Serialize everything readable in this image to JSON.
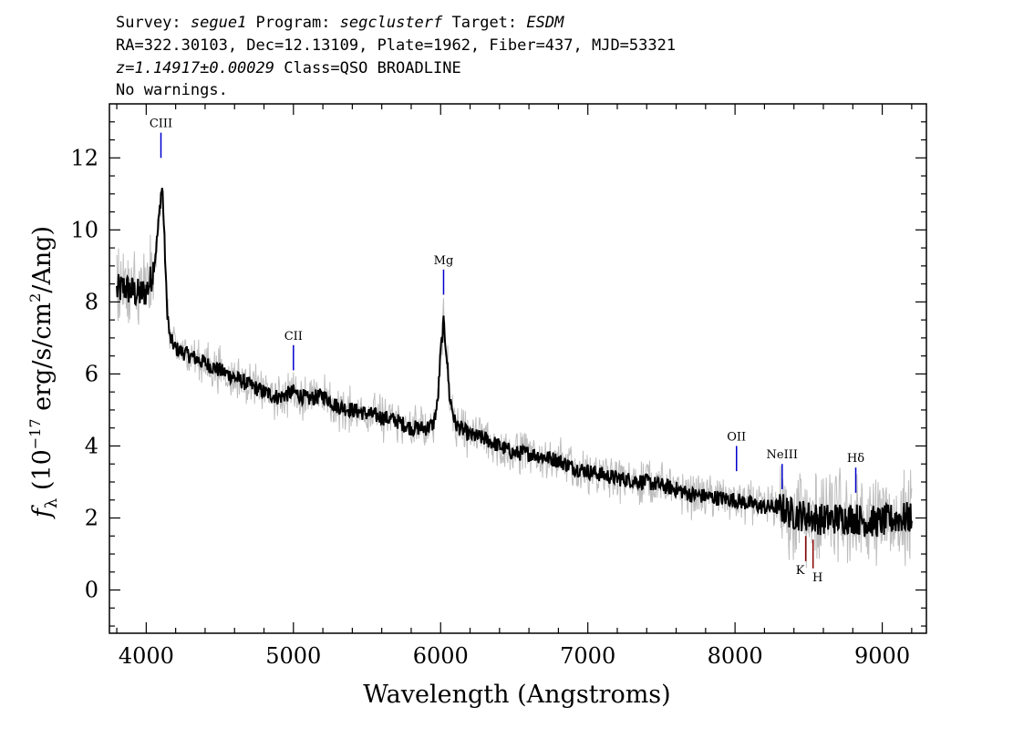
{
  "header": {
    "line1": [
      {
        "t": "Survey: ",
        "i": false
      },
      {
        "t": "segue1",
        "i": true
      },
      {
        "t": " Program: ",
        "i": false
      },
      {
        "t": "segclusterf",
        "i": true
      },
      {
        "t": " Target: ",
        "i": false
      },
      {
        "t": "ESDM",
        "i": true
      }
    ],
    "line2": "RA=322.30103, Dec=12.13109, Plate=1962, Fiber=437, MJD=53321",
    "line3": [
      {
        "t": "z=1.14917±0.00029",
        "i": true
      },
      {
        "t": " Class=QSO BROADLINE",
        "i": false
      }
    ],
    "line4": "No warnings."
  },
  "chart_data": {
    "type": "line",
    "xlabel": "Wavelength (Angstroms)",
    "ylabel_parts": {
      "f": "f",
      "sub": "λ",
      "pre": " (10",
      "exp": "−17",
      "mid": " erg/s/cm",
      "exp2": "2",
      "post": "/Ang)"
    },
    "xlim": [
      3750,
      9300
    ],
    "ylim": [
      -1.2,
      13.5
    ],
    "xticks": [
      4000,
      5000,
      6000,
      7000,
      8000,
      9000
    ],
    "yticks": [
      0,
      2,
      4,
      6,
      8,
      10,
      12
    ],
    "series": [
      {
        "color": "#000000",
        "points": [
          [
            3800,
            8.3
          ],
          [
            3850,
            8.4
          ],
          [
            3900,
            8.3
          ],
          [
            3950,
            8.2
          ],
          [
            4000,
            8.3
          ],
          [
            4030,
            8.6
          ],
          [
            4060,
            9.2
          ],
          [
            4080,
            10.0
          ],
          [
            4100,
            11.0
          ],
          [
            4110,
            11.2
          ],
          [
            4125,
            9.6
          ],
          [
            4140,
            7.9
          ],
          [
            4160,
            7.0
          ],
          [
            4200,
            6.7
          ],
          [
            4300,
            6.5
          ],
          [
            4400,
            6.3
          ],
          [
            4500,
            6.1
          ],
          [
            4600,
            5.9
          ],
          [
            4700,
            5.7
          ],
          [
            4800,
            5.5
          ],
          [
            4900,
            5.35
          ],
          [
            5000,
            5.5
          ],
          [
            5100,
            5.3
          ],
          [
            5200,
            5.4
          ],
          [
            5300,
            5.1
          ],
          [
            5400,
            5.0
          ],
          [
            5500,
            4.9
          ],
          [
            5600,
            4.8
          ],
          [
            5700,
            4.7
          ],
          [
            5800,
            4.5
          ],
          [
            5900,
            4.5
          ],
          [
            5950,
            4.6
          ],
          [
            5980,
            5.2
          ],
          [
            6000,
            6.6
          ],
          [
            6020,
            7.4
          ],
          [
            6040,
            6.6
          ],
          [
            6060,
            5.4
          ],
          [
            6100,
            4.6
          ],
          [
            6200,
            4.3
          ],
          [
            6300,
            4.2
          ],
          [
            6400,
            4.0
          ],
          [
            6500,
            3.8
          ],
          [
            6600,
            3.8
          ],
          [
            6700,
            3.7
          ],
          [
            6800,
            3.6
          ],
          [
            6900,
            3.4
          ],
          [
            7000,
            3.3
          ],
          [
            7100,
            3.2
          ],
          [
            7200,
            3.1
          ],
          [
            7300,
            3.05
          ],
          [
            7400,
            3.0
          ],
          [
            7500,
            2.9
          ],
          [
            7600,
            2.8
          ],
          [
            7700,
            2.65
          ],
          [
            7800,
            2.6
          ],
          [
            7900,
            2.55
          ],
          [
            8000,
            2.5
          ],
          [
            8100,
            2.4
          ],
          [
            8200,
            2.3
          ],
          [
            8300,
            2.3
          ],
          [
            8400,
            2.1
          ],
          [
            8500,
            2.05
          ],
          [
            8600,
            1.95
          ],
          [
            8700,
            2.0
          ],
          [
            8800,
            2.0
          ],
          [
            8900,
            1.9
          ],
          [
            9000,
            1.9
          ],
          [
            9100,
            2.0
          ],
          [
            9200,
            2.0
          ]
        ]
      }
    ],
    "line_markers": [
      {
        "label": "CIII",
        "x": 4100,
        "y0": 12.0,
        "y1": 12.7,
        "color": "#0000cc",
        "pos": "above"
      },
      {
        "label": "CII",
        "x": 5000,
        "y0": 6.1,
        "y1": 6.8,
        "color": "#0000cc",
        "pos": "above"
      },
      {
        "label": "Mg",
        "x": 6020,
        "y0": 8.2,
        "y1": 8.9,
        "color": "#0000cc",
        "pos": "above"
      },
      {
        "label": "OII",
        "x": 8010,
        "y0": 3.3,
        "y1": 4.0,
        "color": "#0000cc",
        "pos": "above"
      },
      {
        "label": "NeIII",
        "x": 8320,
        "y0": 2.8,
        "y1": 3.5,
        "color": "#0000cc",
        "pos": "above"
      },
      {
        "label": "Hδ",
        "x": 8820,
        "y0": 2.7,
        "y1": 3.4,
        "color": "#0000cc",
        "pos": "above"
      },
      {
        "label": "K",
        "x": 8480,
        "y0": 0.8,
        "y1": 1.5,
        "color": "#8b0000",
        "pos": "below"
      },
      {
        "label": "H",
        "x": 8530,
        "y0": 0.6,
        "y1": 1.4,
        "color": "#8b0000",
        "pos": "below"
      }
    ]
  }
}
